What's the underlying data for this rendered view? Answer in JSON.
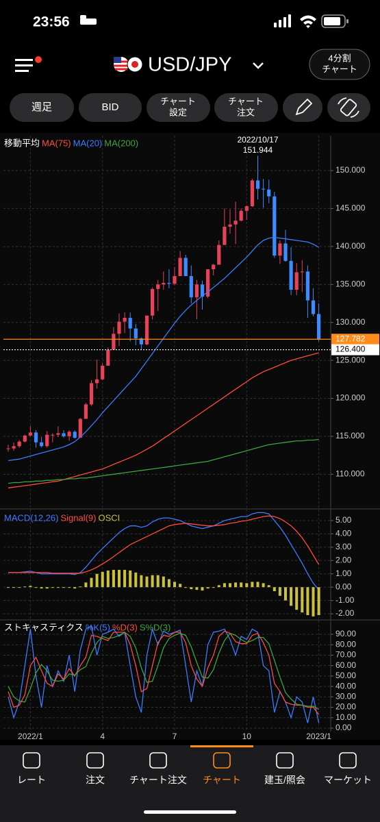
{
  "status_bar": {
    "time": "23:56"
  },
  "header": {
    "pair": "USD/JPY",
    "split_button": [
      "4分割",
      "チャート"
    ]
  },
  "toolbar": [
    "週足",
    "BID",
    [
      "チャート",
      "設定"
    ],
    [
      "チャート",
      "注文"
    ]
  ],
  "chart_data": [
    {
      "type": "candlestick",
      "title": "移動平均",
      "up_color": "#e8425a",
      "down_color": "#3d8bff",
      "grid": true,
      "categories": [
        null,
        null,
        null,
        null,
        "2022/1",
        null,
        null,
        null,
        null,
        null,
        null,
        null,
        null,
        null,
        null,
        null,
        null,
        "4",
        null,
        null,
        null,
        null,
        null,
        null,
        null,
        null,
        null,
        null,
        null,
        null,
        "7",
        null,
        null,
        null,
        null,
        null,
        null,
        null,
        null,
        null,
        null,
        null,
        null,
        "10",
        null,
        null,
        null,
        null,
        null,
        null,
        null,
        null,
        null,
        null,
        null,
        null,
        "2023/1"
      ],
      "open": [
        113.4,
        113.4,
        113.7,
        114.3,
        115.1,
        115.5,
        114.2,
        113.7,
        115.2,
        115.2,
        115.4,
        115.0,
        115.6,
        114.8,
        117.3,
        119.2,
        122.0,
        122.5,
        124.3,
        126.4,
        128.5,
        130.1,
        130.6,
        129.2,
        127.9,
        127.1,
        130.9,
        134.4,
        135.0,
        135.2,
        135.1,
        136.1,
        138.5,
        136.1,
        133.3,
        135.0,
        133.4,
        137.0,
        137.6,
        140.2,
        142.6,
        142.9,
        143.4,
        144.7,
        145.3,
        148.7,
        147.6,
        147.5,
        146.6,
        138.8,
        140.4,
        138.1,
        134.3,
        136.6,
        136.7,
        132.9,
        131.1
      ],
      "high": [
        113.9,
        114.2,
        114.5,
        115.2,
        116.35,
        115.8,
        114.9,
        115.7,
        115.4,
        116.3,
        115.8,
        115.8,
        115.8,
        117.4,
        119.4,
        122.4,
        125.1,
        124.6,
        126.7,
        129.4,
        131.2,
        131.3,
        131.3,
        129.8,
        128.0,
        130.9,
        134.6,
        135.6,
        136.7,
        137.0,
        137.3,
        139.4,
        138.9,
        137.5,
        135.6,
        135.5,
        137.0,
        137.7,
        140.8,
        145.0,
        144.9,
        145.9,
        145.0,
        145.4,
        148.9,
        151.944,
        148.9,
        148.8,
        147.2,
        140.8,
        142.2,
        139.9,
        137.8,
        138.2,
        137.5,
        134.5,
        132.5
      ],
      "low": [
        113.0,
        113.1,
        113.5,
        114.2,
        115.0,
        113.5,
        113.5,
        113.5,
        114.2,
        114.9,
        114.8,
        114.4,
        114.7,
        114.8,
        117.3,
        119.0,
        121.3,
        122.4,
        124.3,
        126.4,
        126.9,
        128.6,
        127.5,
        127.0,
        126.4,
        127.0,
        130.4,
        131.5,
        134.3,
        134.5,
        134.9,
        136.1,
        136.5,
        132.5,
        130.4,
        131.7,
        133.2,
        136.2,
        137.6,
        140.2,
        141.7,
        140.3,
        143.3,
        143.5,
        145.2,
        146.2,
        145.1,
        145.7,
        138.5,
        137.7,
        138.0,
        133.6,
        133.6,
        134.0,
        130.6,
        130.8,
        127.5
      ],
      "close": [
        113.4,
        113.7,
        114.3,
        115.1,
        115.5,
        114.2,
        113.7,
        115.2,
        115.2,
        115.4,
        115.0,
        115.6,
        114.8,
        117.3,
        119.2,
        122.0,
        122.5,
        124.3,
        126.4,
        128.5,
        130.1,
        130.6,
        129.2,
        127.9,
        127.1,
        130.9,
        134.4,
        135.0,
        135.2,
        135.1,
        136.1,
        138.5,
        136.1,
        133.3,
        135.0,
        133.4,
        137.0,
        137.6,
        140.2,
        142.6,
        142.9,
        143.4,
        144.7,
        145.3,
        148.7,
        147.6,
        147.5,
        146.6,
        138.8,
        140.4,
        138.1,
        134.3,
        136.6,
        136.7,
        132.9,
        131.1,
        127.782
      ],
      "series": [
        {
          "name": "MA(75)",
          "color": "#ff4b3e",
          "values": [
            108.2,
            108.3,
            108.4,
            108.5,
            108.6,
            108.7,
            108.8,
            108.9,
            109.0,
            109.1,
            109.3,
            109.5,
            109.7,
            109.9,
            110.1,
            110.3,
            110.5,
            110.7,
            111.0,
            111.3,
            111.6,
            111.9,
            112.2,
            112.5,
            112.9,
            113.3,
            113.7,
            114.2,
            114.7,
            115.2,
            115.7,
            116.2,
            116.7,
            117.2,
            117.7,
            118.2,
            118.7,
            119.2,
            119.7,
            120.2,
            120.7,
            121.2,
            121.7,
            122.2,
            122.7,
            123.1,
            123.5,
            123.8,
            124.1,
            124.4,
            124.7,
            125.0,
            125.2,
            125.4,
            125.6,
            125.8,
            126.0
          ]
        },
        {
          "name": "MA(20)",
          "color": "#3d7bff",
          "values": [
            111.8,
            111.9,
            112.0,
            112.2,
            112.4,
            112.6,
            112.8,
            113.0,
            113.2,
            113.4,
            113.6,
            113.9,
            114.3,
            114.9,
            115.6,
            116.4,
            117.2,
            118.1,
            118.9,
            119.7,
            120.5,
            121.3,
            122.1,
            122.9,
            123.9,
            124.9,
            125.9,
            126.9,
            127.9,
            128.9,
            129.9,
            130.8,
            131.6,
            132.3,
            132.9,
            133.5,
            134.0,
            134.6,
            135.2,
            135.8,
            136.5,
            137.2,
            137.9,
            138.6,
            139.4,
            140.2,
            140.8,
            141.1,
            141.2,
            141.1,
            141.0,
            140.9,
            140.8,
            140.7,
            140.6,
            140.3,
            139.9
          ]
        },
        {
          "name": "MA(200)",
          "color": "#3fa33f",
          "values": [
            108.8,
            108.9,
            108.9,
            109.0,
            109.0,
            109.1,
            109.1,
            109.2,
            109.2,
            109.3,
            109.3,
            109.4,
            109.4,
            109.5,
            109.5,
            109.6,
            109.7,
            109.8,
            109.9,
            110.0,
            110.1,
            110.2,
            110.3,
            110.4,
            110.5,
            110.6,
            110.7,
            110.8,
            110.9,
            111.0,
            111.1,
            111.2,
            111.3,
            111.4,
            111.5,
            111.6,
            111.7,
            111.9,
            112.1,
            112.3,
            112.5,
            112.7,
            112.9,
            113.1,
            113.3,
            113.5,
            113.7,
            113.9,
            114.0,
            114.1,
            114.2,
            114.3,
            114.4,
            114.4,
            114.5,
            114.5,
            114.6
          ]
        }
      ],
      "ylim": [
        105.7,
        154.6
      ],
      "yticks": [
        {
          "value": 110,
          "label": "110.000"
        },
        {
          "value": 115,
          "label": "115.000"
        },
        {
          "value": 120,
          "label": "120.000"
        },
        {
          "value": 125,
          "label": "125.000"
        },
        {
          "value": 130,
          "label": "130.000"
        },
        {
          "value": 135,
          "label": "135.000"
        },
        {
          "value": 140,
          "label": "140.000"
        },
        {
          "value": 145,
          "label": "145.000"
        },
        {
          "value": 150,
          "label": "150.000"
        }
      ],
      "annotations": [
        {
          "text": "2022/10/17",
          "value": 151.944
        }
      ],
      "price_lines": [
        {
          "value": 127.782,
          "label": "127.782",
          "color": "#ff8c1a"
        },
        {
          "value": 126.4,
          "label": "126.400",
          "color": "#ffffff"
        }
      ]
    },
    {
      "type": "line",
      "grid": true,
      "series": [
        {
          "name": "MACD(12,26)",
          "color": "#3d7bff",
          "values": [
            1.1,
            1.1,
            1.1,
            1.15,
            1.2,
            1.1,
            1.0,
            1.0,
            1.0,
            1.0,
            1.0,
            1.0,
            0.95,
            1.1,
            1.5,
            2.0,
            2.5,
            2.9,
            3.3,
            3.7,
            4.1,
            4.4,
            4.6,
            4.6,
            4.5,
            4.6,
            4.9,
            5.1,
            5.2,
            5.2,
            5.1,
            5.0,
            4.8,
            4.6,
            4.5,
            4.4,
            4.5,
            4.6,
            4.8,
            5.0,
            5.1,
            5.2,
            5.3,
            5.3,
            5.5,
            5.6,
            5.6,
            5.5,
            5.0,
            4.5,
            3.9,
            3.2,
            2.5,
            1.8,
            1.0,
            0.3,
            -0.2
          ]
        },
        {
          "name": "Signal(9)",
          "color": "#ff4b3e",
          "values": [
            1.1,
            1.1,
            1.1,
            1.1,
            1.1,
            1.1,
            1.1,
            1.1,
            1.05,
            1.05,
            1.05,
            1.05,
            1.05,
            1.05,
            1.15,
            1.3,
            1.5,
            1.75,
            2.0,
            2.3,
            2.6,
            2.9,
            3.2,
            3.4,
            3.6,
            3.8,
            4.0,
            4.2,
            4.4,
            4.6,
            4.7,
            4.75,
            4.8,
            4.75,
            4.7,
            4.65,
            4.6,
            4.6,
            4.65,
            4.7,
            4.8,
            4.85,
            4.95,
            5.0,
            5.1,
            5.2,
            5.3,
            5.35,
            5.3,
            5.15,
            4.9,
            4.6,
            4.2,
            3.7,
            3.1,
            2.4,
            1.7
          ]
        },
        {
          "name": "OSCI",
          "type": "bar",
          "color": "#c9c23a",
          "values": [
            0.0,
            0.0,
            0.0,
            0.05,
            0.1,
            0.0,
            -0.1,
            -0.1,
            -0.05,
            -0.05,
            -0.05,
            -0.05,
            -0.1,
            0.05,
            0.35,
            0.7,
            1.0,
            1.15,
            1.25,
            1.3,
            1.3,
            1.3,
            1.25,
            1.1,
            0.9,
            0.8,
            0.9,
            0.9,
            0.8,
            0.6,
            0.4,
            0.25,
            0.0,
            -0.15,
            -0.2,
            -0.25,
            -0.1,
            0.0,
            0.15,
            0.3,
            0.3,
            0.35,
            0.35,
            0.3,
            0.4,
            0.4,
            0.3,
            0.15,
            -0.3,
            -0.65,
            -1.0,
            -1.4,
            -1.7,
            -1.9,
            -2.1,
            -2.2,
            -2.1
          ]
        }
      ],
      "ylim": [
        -2.46,
        5.77
      ],
      "yticks": [
        {
          "value": -2,
          "label": "-2.00"
        },
        {
          "value": -1,
          "label": "-1.00"
        },
        {
          "value": 0,
          "label": "0.00"
        },
        {
          "value": 1,
          "label": "1.00"
        },
        {
          "value": 2,
          "label": "2.00"
        },
        {
          "value": 3,
          "label": "3.00"
        },
        {
          "value": 4,
          "label": "4.00"
        },
        {
          "value": 5,
          "label": "5.00"
        }
      ]
    },
    {
      "type": "line",
      "title": "ストキャスティクス",
      "grid": true,
      "series": [
        {
          "name": "%K(5)",
          "color": "#3d7bff",
          "values": [
            30,
            10,
            25,
            60,
            95,
            50,
            20,
            60,
            40,
            55,
            45,
            70,
            35,
            75,
            95,
            98,
            70,
            90,
            92,
            95,
            88,
            92,
            60,
            30,
            15,
            70,
            95,
            80,
            93,
            90,
            92,
            94,
            60,
            25,
            55,
            40,
            80,
            92,
            93,
            95,
            85,
            70,
            88,
            85,
            95,
            92,
            60,
            55,
            15,
            35,
            25,
            10,
            30,
            25,
            5,
            30,
            5
          ]
        },
        {
          "name": "%D(3)",
          "color": "#ff4b3e",
          "values": [
            35,
            20,
            22,
            32,
            60,
            68,
            55,
            43,
            40,
            52,
            47,
            57,
            50,
            60,
            68,
            89,
            88,
            86,
            84,
            92,
            92,
            92,
            80,
            60,
            35,
            38,
            60,
            82,
            89,
            88,
            92,
            92,
            82,
            60,
            47,
            40,
            58,
            70,
            88,
            93,
            91,
            83,
            81,
            81,
            89,
            91,
            82,
            70,
            43,
            35,
            25,
            23,
            22,
            22,
            20,
            20,
            13
          ]
        },
        {
          "name": "S%D(3)",
          "color": "#3fa33f",
          "values": [
            40,
            30,
            26,
            25,
            38,
            53,
            61,
            55,
            46,
            45,
            46,
            52,
            51,
            56,
            59,
            72,
            82,
            88,
            86,
            87,
            89,
            92,
            88,
            77,
            58,
            44,
            45,
            60,
            77,
            86,
            89,
            91,
            89,
            78,
            63,
            49,
            48,
            56,
            72,
            84,
            91,
            89,
            85,
            82,
            84,
            87,
            87,
            81,
            65,
            49,
            34,
            28,
            23,
            22,
            21,
            21,
            18
          ]
        }
      ],
      "ylim": [
        -3.3,
        103.8
      ],
      "yticks": [
        {
          "value": 0,
          "label": "0.00"
        },
        {
          "value": 10,
          "label": "10.00"
        },
        {
          "value": 20,
          "label": "20.00"
        },
        {
          "value": 30,
          "label": "30.00"
        },
        {
          "value": 40,
          "label": "40.00"
        },
        {
          "value": 50,
          "label": "50.00"
        },
        {
          "value": 60,
          "label": "60.00"
        },
        {
          "value": 70,
          "label": "70.00"
        },
        {
          "value": 80,
          "label": "80.00"
        },
        {
          "value": 90,
          "label": "90.00"
        }
      ]
    }
  ],
  "tab_bar": {
    "items": [
      "レート",
      "注文",
      "チャート注文",
      "チャート",
      "建玉/照会",
      "マーケット"
    ],
    "active": 3
  }
}
